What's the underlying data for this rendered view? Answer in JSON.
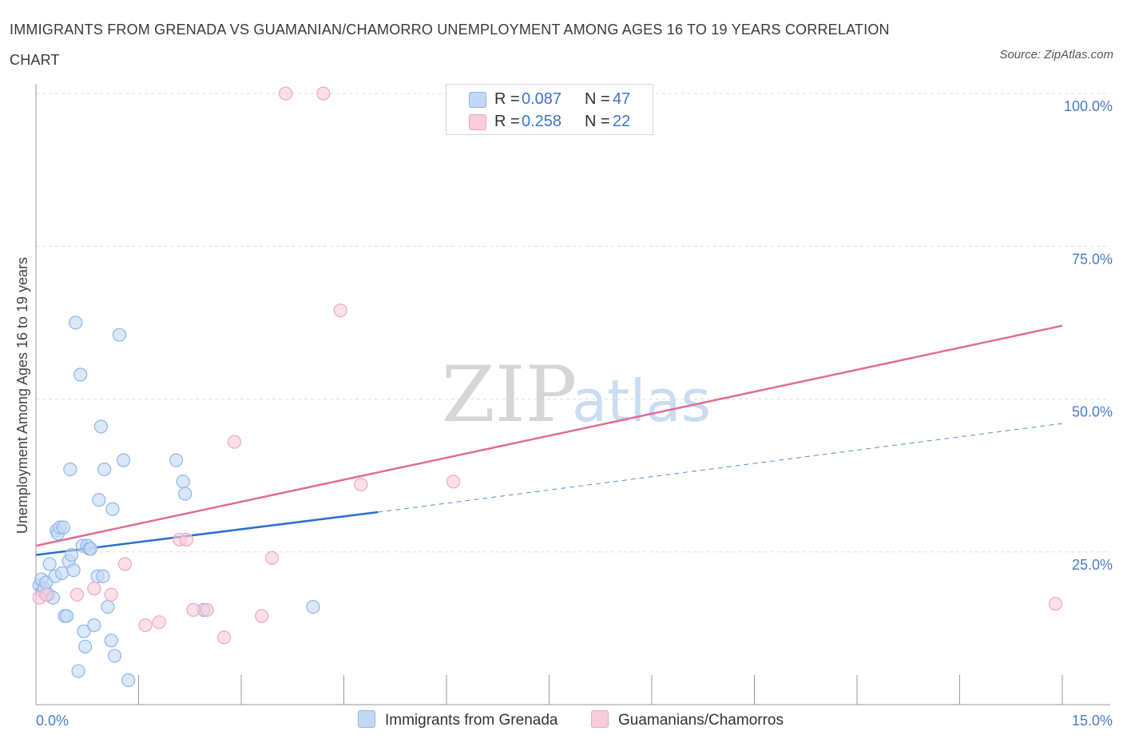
{
  "chart_data": {
    "type": "scatter",
    "title": "IMMIGRANTS FROM GRENADA VS GUAMANIAN/CHAMORRO UNEMPLOYMENT AMONG AGES 16 TO 19 YEARS CORRELATION CHART",
    "source": "Source: ZipAtlas.com",
    "xlabel": "",
    "ylabel": "Unemployment Among Ages 16 to 19 years",
    "xlim": [
      0,
      15
    ],
    "ylim": [
      0,
      100
    ],
    "x_tick_labels": [
      "0.0%",
      "15.0%"
    ],
    "y_tick_labels": [
      "100.0%",
      "75.0%",
      "50.0%",
      "25.0%"
    ],
    "y_tick_values": [
      100,
      75,
      50,
      25
    ],
    "watermark": {
      "zip": "ZIP",
      "atlas": "atlas"
    },
    "legend_stats": [
      {
        "r_label": "R =",
        "r_value": "0.087",
        "n_label": "N =",
        "n_value": "47"
      },
      {
        "r_label": "R =",
        "r_value": "0.258",
        "n_label": "N =",
        "n_value": "22"
      }
    ],
    "series": [
      {
        "name": "Immigrants from Grenada",
        "color": "#8db6e8",
        "fill": "#c3d8f3",
        "line_color": "#2c6fcb",
        "trend": {
          "x0": 0,
          "y0": 24.5,
          "x1": 5,
          "y1": 31.5,
          "dash_to_x": 15,
          "dash_to_y": 46
        },
        "points": [
          {
            "x": 0.05,
            "y": 19.5
          },
          {
            "x": 0.08,
            "y": 20.5
          },
          {
            "x": 0.1,
            "y": 18.5
          },
          {
            "x": 0.12,
            "y": 19
          },
          {
            "x": 0.15,
            "y": 20
          },
          {
            "x": 0.18,
            "y": 18
          },
          {
            "x": 0.2,
            "y": 23
          },
          {
            "x": 0.25,
            "y": 17.5
          },
          {
            "x": 0.28,
            "y": 21
          },
          {
            "x": 0.3,
            "y": 28.5
          },
          {
            "x": 0.32,
            "y": 28
          },
          {
            "x": 0.35,
            "y": 29
          },
          {
            "x": 0.38,
            "y": 21.5
          },
          {
            "x": 0.4,
            "y": 29
          },
          {
            "x": 0.42,
            "y": 14.5
          },
          {
            "x": 0.45,
            "y": 14.5
          },
          {
            "x": 0.48,
            "y": 23.5
          },
          {
            "x": 0.5,
            "y": 38.5
          },
          {
            "x": 0.52,
            "y": 24.5
          },
          {
            "x": 0.55,
            "y": 22
          },
          {
            "x": 0.58,
            "y": 62.5
          },
          {
            "x": 0.62,
            "y": 5.5
          },
          {
            "x": 0.65,
            "y": 54
          },
          {
            "x": 0.68,
            "y": 26
          },
          {
            "x": 0.7,
            "y": 12
          },
          {
            "x": 0.72,
            "y": 9.5
          },
          {
            "x": 0.75,
            "y": 26
          },
          {
            "x": 0.78,
            "y": 25.5
          },
          {
            "x": 0.8,
            "y": 25.5
          },
          {
            "x": 0.85,
            "y": 13
          },
          {
            "x": 0.9,
            "y": 21
          },
          {
            "x": 0.92,
            "y": 33.5
          },
          {
            "x": 0.95,
            "y": 45.5
          },
          {
            "x": 0.98,
            "y": 21
          },
          {
            "x": 1.0,
            "y": 38.5
          },
          {
            "x": 1.05,
            "y": 16
          },
          {
            "x": 1.1,
            "y": 10.5
          },
          {
            "x": 1.12,
            "y": 32
          },
          {
            "x": 1.15,
            "y": 8
          },
          {
            "x": 1.22,
            "y": 60.5
          },
          {
            "x": 1.28,
            "y": 40
          },
          {
            "x": 1.35,
            "y": 4
          },
          {
            "x": 2.05,
            "y": 40
          },
          {
            "x": 2.15,
            "y": 36.5
          },
          {
            "x": 2.18,
            "y": 34.5
          },
          {
            "x": 2.45,
            "y": 15.5
          },
          {
            "x": 4.05,
            "y": 16
          }
        ]
      },
      {
        "name": "Guamanians/Chamorros",
        "color": "#f0a7bf",
        "fill": "#f8ccda",
        "line_color": "#e06c96",
        "trend": {
          "x0": 0,
          "y0": 26,
          "x1": 15,
          "y1": 62
        },
        "points": [
          {
            "x": 0.05,
            "y": 17.5
          },
          {
            "x": 0.15,
            "y": 18
          },
          {
            "x": 0.6,
            "y": 18
          },
          {
            "x": 0.85,
            "y": 19
          },
          {
            "x": 1.1,
            "y": 18
          },
          {
            "x": 1.3,
            "y": 23
          },
          {
            "x": 1.6,
            "y": 13
          },
          {
            "x": 1.8,
            "y": 13.5
          },
          {
            "x": 2.1,
            "y": 27
          },
          {
            "x": 2.2,
            "y": 27
          },
          {
            "x": 2.3,
            "y": 15.5
          },
          {
            "x": 2.5,
            "y": 15.5
          },
          {
            "x": 2.75,
            "y": 11
          },
          {
            "x": 2.9,
            "y": 43
          },
          {
            "x": 3.3,
            "y": 14.5
          },
          {
            "x": 3.45,
            "y": 24
          },
          {
            "x": 3.65,
            "y": 100
          },
          {
            "x": 4.2,
            "y": 100
          },
          {
            "x": 4.45,
            "y": 64.5
          },
          {
            "x": 4.75,
            "y": 36
          },
          {
            "x": 6.1,
            "y": 36.5
          },
          {
            "x": 14.9,
            "y": 16.5
          }
        ]
      }
    ]
  },
  "colors": {
    "grid": "#dddddd",
    "axis": "#999999",
    "tick_label": "#4a7cc4"
  }
}
